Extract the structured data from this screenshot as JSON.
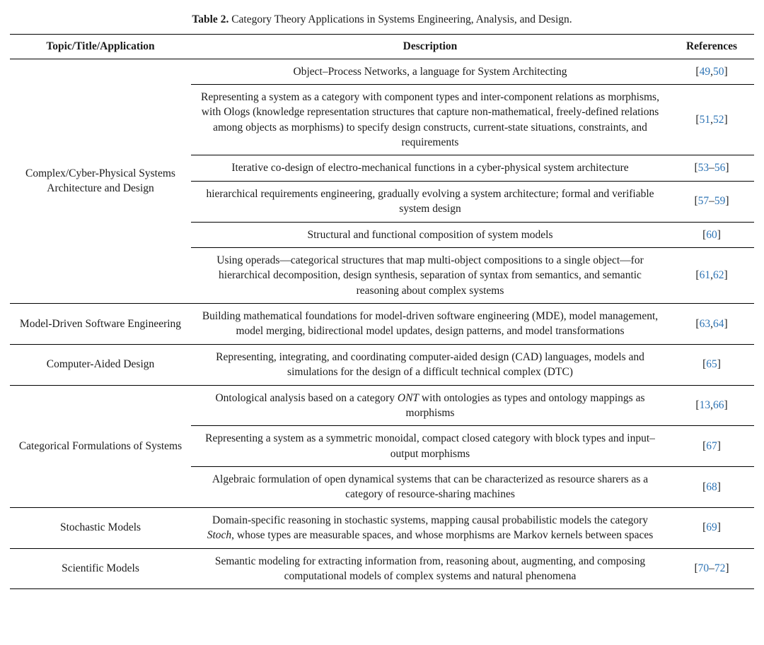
{
  "caption": {
    "label": "Table 2.",
    "text": " Category Theory Applications in Systems Engineering, Analysis, and Design."
  },
  "header": {
    "topic": "Topic/Title/Application",
    "description": "Description",
    "references": "References"
  },
  "groups": [
    {
      "topic": "Complex/Cyber-Physical Systems Architecture and Design",
      "rows": [
        {
          "description": "Object–Process Networks, a language for System Architecting",
          "ref": [
            "[",
            "49",
            ",",
            "50",
            "]"
          ]
        },
        {
          "description": "Representing a system as a category with component types and inter-component relations as morphisms, with Ologs (knowledge representation structures that capture non-mathematical, freely-defined relations among objects as morphisms) to specify design constructs, current-state situations, constraints, and requirements",
          "ref": [
            "[",
            "51",
            ",",
            "52",
            "]"
          ]
        },
        {
          "description": "Iterative co-design of electro-mechanical functions in a cyber-physical system architecture",
          "ref": [
            "[",
            "53",
            "–",
            "56",
            "]"
          ]
        },
        {
          "description": "hierarchical requirements engineering, gradually evolving a system architecture; formal and verifiable system design",
          "ref": [
            "[",
            "57",
            "–",
            "59",
            "]"
          ]
        },
        {
          "description": "Structural and functional composition of system models",
          "ref": [
            "[",
            "60",
            "]"
          ]
        },
        {
          "description": "Using operads—categorical structures that map multi-object compositions to a single object—for hierarchical decomposition, design synthesis, separation of syntax from semantics, and semantic reasoning about complex systems",
          "ref": [
            "[",
            "61",
            ",",
            "62",
            "]"
          ]
        }
      ]
    },
    {
      "topic": "Model-Driven Software Engineering",
      "rows": [
        {
          "description": "Building mathematical foundations for model-driven software engineering (MDE), model management, model merging, bidirectional model updates, design patterns, and model transformations",
          "ref": [
            "[",
            "63",
            ",",
            "64",
            "]"
          ]
        }
      ]
    },
    {
      "topic": "Computer-Aided Design",
      "rows": [
        {
          "description": "Representing, integrating, and coordinating computer-aided design (CAD) languages, models and simulations for the design of a difficult technical complex (DTC)",
          "ref": [
            "[",
            "65",
            "]"
          ]
        }
      ]
    },
    {
      "topic": "Categorical Formulations of Systems",
      "rows": [
        {
          "description_parts": {
            "before": "Ontological analysis based on a category ",
            "italic": "ONT",
            "after": " with ontologies as types and ontology mappings as morphisms"
          },
          "ref": [
            "[",
            "13",
            ",",
            "66",
            "]"
          ]
        },
        {
          "description": "Representing a system as a symmetric monoidal, compact closed category with block types and input–output morphisms",
          "ref": [
            "[",
            "67",
            "]"
          ]
        },
        {
          "description": "Algebraic formulation of open dynamical systems that can be characterized as resource sharers as a category of resource-sharing machines",
          "ref": [
            "[",
            "68",
            "]"
          ]
        }
      ]
    },
    {
      "topic": "Stochastic Models",
      "rows": [
        {
          "description_parts": {
            "before": "Domain-specific reasoning in stochastic systems, mapping causal probabilistic models the category ",
            "italic": "Stoch",
            "after": ", whose types are measurable spaces, and whose morphisms are Markov kernels between spaces"
          },
          "ref": [
            "[",
            "69",
            "]"
          ]
        }
      ]
    },
    {
      "topic": "Scientific Models",
      "rows": [
        {
          "description": "Semantic modeling for extracting information from, reasoning about, augmenting, and composing computational models of complex systems and natural phenomena",
          "ref": [
            "[",
            "70",
            "–",
            "72",
            "]"
          ]
        }
      ]
    }
  ],
  "colors": {
    "link": "#2e74b5",
    "text": "#1b1b1b",
    "rule": "#000000"
  }
}
